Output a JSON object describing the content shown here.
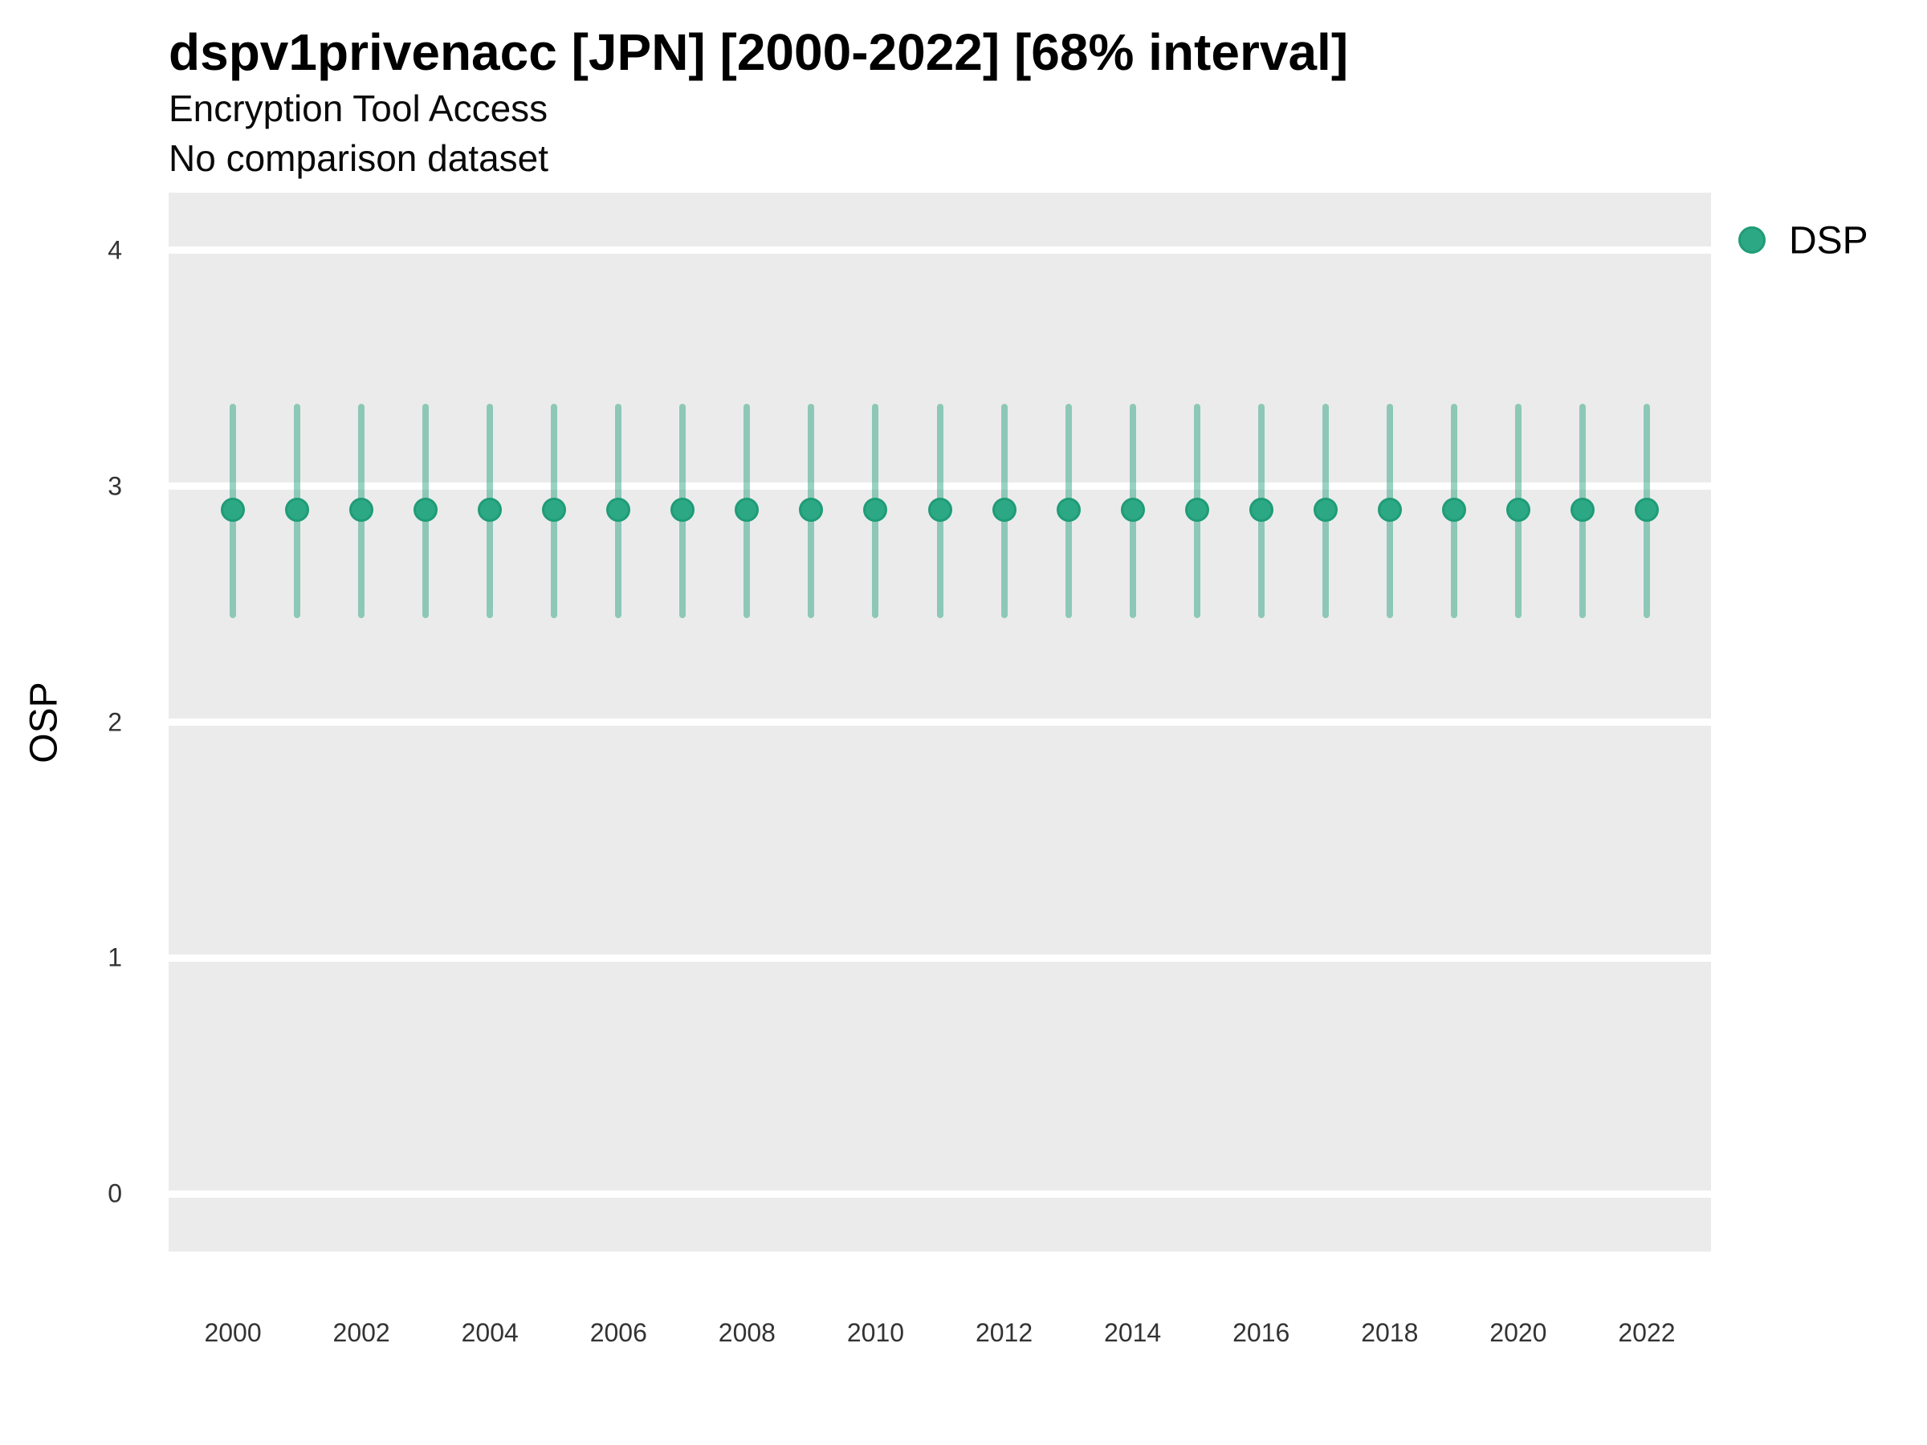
{
  "header": {
    "title": "dspv1privenacc [JPN] [2000-2022] [68% interval]",
    "subtitle": "Encryption Tool Access",
    "note": "No comparison dataset"
  },
  "legend": {
    "position": "right",
    "items": [
      {
        "label": "DSP",
        "marker": "circle-icon"
      }
    ]
  },
  "axes": {
    "y_label": "OSP",
    "x_label": ""
  },
  "colors": {
    "panel_background": "#ebebeb",
    "gridline": "#ffffff",
    "point_fill": "#2ca885",
    "point_stroke": "#1f9c77",
    "interval_line": "rgba(27,158,119,0.45)",
    "series_base": "#1b9e77",
    "tick_text": "#333333",
    "title_text": "#000000"
  },
  "chart_data": {
    "type": "pointrange",
    "title": "dspv1privenacc [JPN] [2000-2022] [68% interval]",
    "subtitle": "Encryption Tool Access",
    "note": "No comparison dataset",
    "interval_label": "68% interval",
    "country": "JPN",
    "xlabel": "",
    "ylabel": "OSP",
    "xlim": [
      1999,
      2023
    ],
    "ylim": [
      -0.245,
      4.245
    ],
    "y_ticks": [
      0,
      1,
      2,
      3,
      4
    ],
    "x_ticks": [
      2000,
      2002,
      2004,
      2006,
      2008,
      2010,
      2012,
      2014,
      2016,
      2018,
      2020,
      2022
    ],
    "grid": "horizontal-major-only",
    "legend_position": "right",
    "series": [
      {
        "name": "DSP",
        "points": [
          {
            "x": 2000,
            "y": 2.9,
            "lo": 2.44,
            "hi": 3.35
          },
          {
            "x": 2001,
            "y": 2.9,
            "lo": 2.44,
            "hi": 3.35
          },
          {
            "x": 2002,
            "y": 2.9,
            "lo": 2.44,
            "hi": 3.35
          },
          {
            "x": 2003,
            "y": 2.9,
            "lo": 2.44,
            "hi": 3.35
          },
          {
            "x": 2004,
            "y": 2.9,
            "lo": 2.44,
            "hi": 3.35
          },
          {
            "x": 2005,
            "y": 2.9,
            "lo": 2.44,
            "hi": 3.35
          },
          {
            "x": 2006,
            "y": 2.9,
            "lo": 2.44,
            "hi": 3.35
          },
          {
            "x": 2007,
            "y": 2.9,
            "lo": 2.44,
            "hi": 3.35
          },
          {
            "x": 2008,
            "y": 2.9,
            "lo": 2.44,
            "hi": 3.35
          },
          {
            "x": 2009,
            "y": 2.9,
            "lo": 2.44,
            "hi": 3.35
          },
          {
            "x": 2010,
            "y": 2.9,
            "lo": 2.44,
            "hi": 3.35
          },
          {
            "x": 2011,
            "y": 2.9,
            "lo": 2.44,
            "hi": 3.35
          },
          {
            "x": 2012,
            "y": 2.9,
            "lo": 2.44,
            "hi": 3.35
          },
          {
            "x": 2013,
            "y": 2.9,
            "lo": 2.44,
            "hi": 3.35
          },
          {
            "x": 2014,
            "y": 2.9,
            "lo": 2.44,
            "hi": 3.35
          },
          {
            "x": 2015,
            "y": 2.9,
            "lo": 2.44,
            "hi": 3.35
          },
          {
            "x": 2016,
            "y": 2.9,
            "lo": 2.44,
            "hi": 3.35
          },
          {
            "x": 2017,
            "y": 2.9,
            "lo": 2.44,
            "hi": 3.35
          },
          {
            "x": 2018,
            "y": 2.9,
            "lo": 2.44,
            "hi": 3.35
          },
          {
            "x": 2019,
            "y": 2.9,
            "lo": 2.44,
            "hi": 3.35
          },
          {
            "x": 2020,
            "y": 2.9,
            "lo": 2.44,
            "hi": 3.35
          },
          {
            "x": 2021,
            "y": 2.9,
            "lo": 2.44,
            "hi": 3.35
          },
          {
            "x": 2022,
            "y": 2.9,
            "lo": 2.44,
            "hi": 3.35
          }
        ]
      }
    ]
  }
}
